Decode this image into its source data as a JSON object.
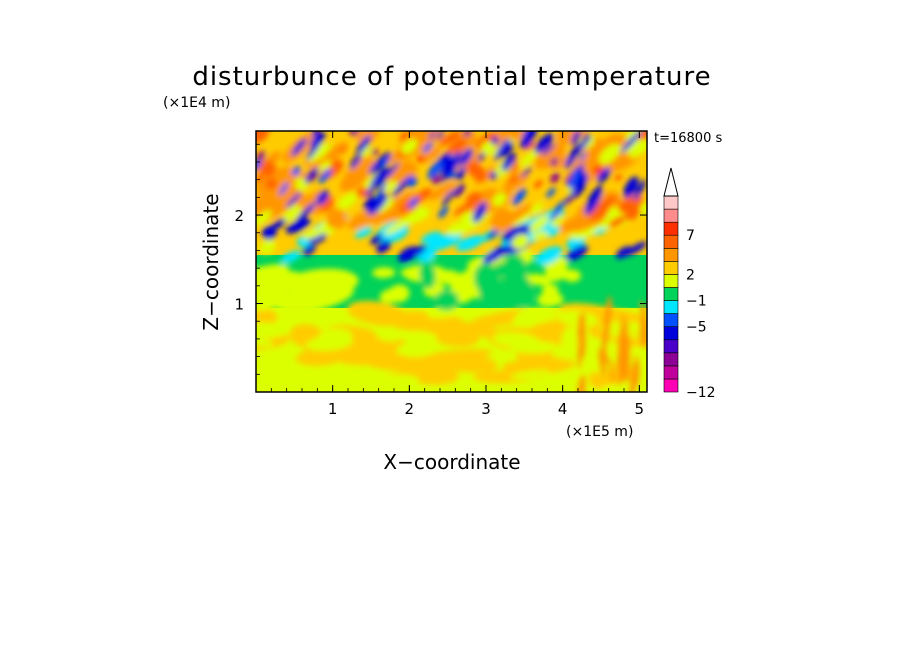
{
  "chart_data": {
    "type": "heatmap",
    "title": "disturbunce of potential temperature",
    "xlabel": "X−coordinate",
    "ylabel": "Z−coordinate",
    "x_unit": "(×1E5 m)",
    "y_unit": "(×1E4 m)",
    "time_label": "t=16800 s",
    "xlim": [
      0,
      5.1
    ],
    "ylim": [
      0,
      2.95
    ],
    "x_ticks": [
      1,
      2,
      3,
      4,
      5
    ],
    "y_ticks": [
      1,
      2
    ],
    "colorbar": {
      "colors": [
        "#ff00b4",
        "#c0009c",
        "#8c0096",
        "#4a00c8",
        "#0000dc",
        "#0050ff",
        "#00e6ff",
        "#00d25a",
        "#dcff00",
        "#ffcc00",
        "#ff9600",
        "#ff6400",
        "#ff3000",
        "#ff8c8c",
        "#ffc8c8"
      ],
      "tick_labels": [
        "−12",
        "−5",
        "−1",
        "2",
        "7"
      ],
      "tick_band_index": [
        0,
        5,
        7,
        9,
        12
      ],
      "extend_top": true
    },
    "field_pattern": [
      {
        "z_from": 2.2,
        "z_to": 2.95,
        "dominant": [
          "orange",
          "red",
          "yellow",
          "blue",
          "purple"
        ],
        "description_level": "strong alternating warm/cold wave bands"
      },
      {
        "z_from": 1.5,
        "z_to": 2.2,
        "dominant": [
          "green",
          "yellow",
          "blue",
          "cyan"
        ]
      },
      {
        "z_from": 0.95,
        "z_to": 1.5,
        "dominant": [
          "green",
          "yellow"
        ]
      },
      {
        "z_from": 0.0,
        "z_to": 0.95,
        "dominant": [
          "yellow",
          "light orange"
        ]
      }
    ]
  }
}
